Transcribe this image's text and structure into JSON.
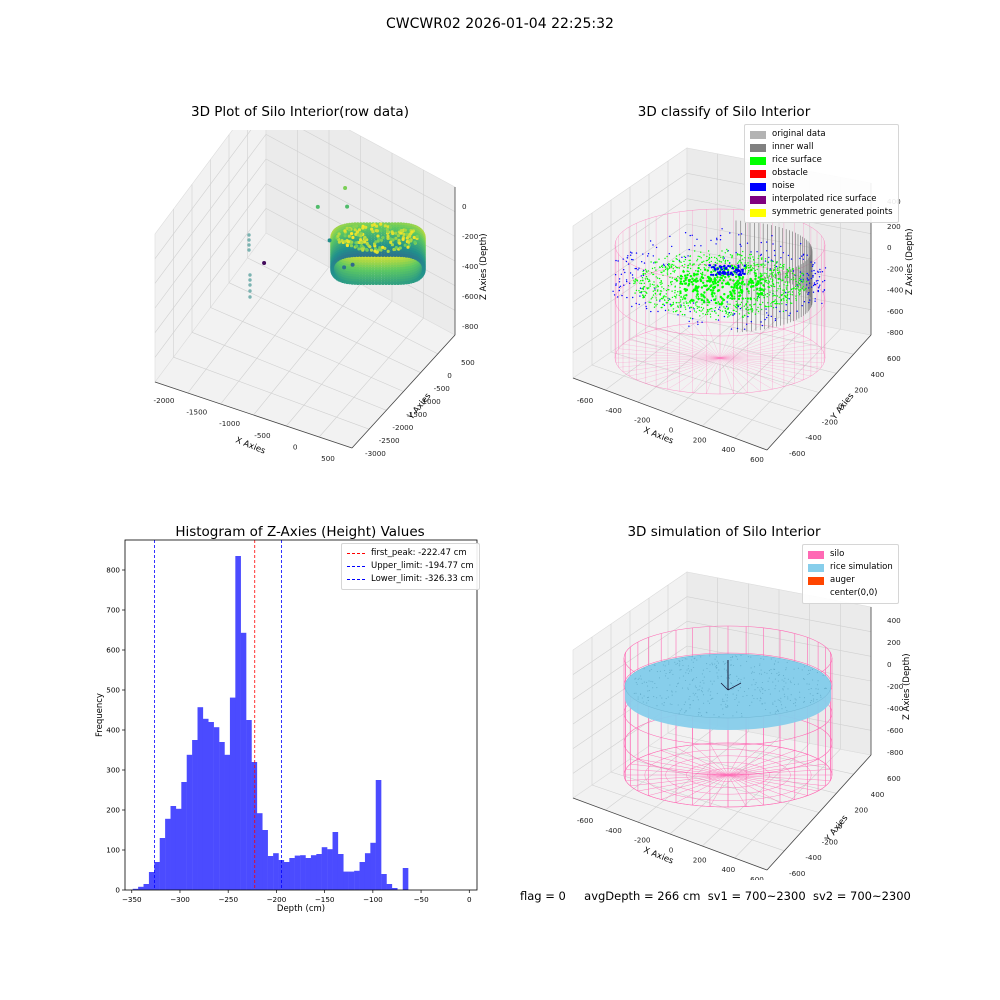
{
  "suptitle": "CWCWR02 2026-01-04 22:25:32",
  "footer": {
    "flag": "flag = 0",
    "avg_depth": "avgDepth = 266 cm",
    "sv1": "sv1 = 700~2300",
    "sv2": "sv2 = 700~2300"
  },
  "colors": {
    "silo_wire": "#ff69b4",
    "rice": "#87ceeb",
    "rice_surface": "#00ff00",
    "noise": "#0000ff",
    "inner_wall": "#808080",
    "hist_bar": "#4b4bff"
  },
  "chart_data": [
    {
      "type": "scatter",
      "projection": "3d",
      "title": "3D Plot of Silo Interior(row data)",
      "xlabel": "X Axies",
      "ylabel": "Y Axies",
      "zlabel": "Z Axies (Depth)",
      "x_ticks": [
        "-2000",
        "-1500",
        "-1000",
        "-500",
        "0",
        "500"
      ],
      "y_ticks": [
        "500",
        "0",
        "-500",
        "-1000",
        "-1500",
        "-2000",
        "-2500",
        "-3000"
      ],
      "z_ticks": [
        "0",
        "-200",
        "-400",
        "-600",
        "-800"
      ],
      "colormap": "viridis",
      "outlier_points": [
        {
          "x": -1900,
          "y": 0,
          "z": -950
        },
        {
          "x": -1000,
          "y": -300,
          "z": -300
        },
        {
          "x": -850,
          "y": -250,
          "z": -500
        },
        {
          "x": -600,
          "y": -350,
          "z": -600
        },
        {
          "x": -600,
          "y": -50,
          "z": -650
        },
        {
          "x": -700,
          "y": 0,
          "z": -300
        },
        {
          "x": -750,
          "y": 50,
          "z": -200
        }
      ]
    },
    {
      "type": "scatter",
      "projection": "3d",
      "title": "3D classify of Silo Interior",
      "xlabel": "X Axies",
      "ylabel": "Y Axies",
      "zlabel": "Z Axies (Depth)",
      "x_ticks": [
        "-600",
        "-400",
        "-200",
        "0",
        "200",
        "400",
        "600"
      ],
      "y_ticks": [
        "600",
        "400",
        "200",
        "0",
        "-200",
        "-400",
        "-600"
      ],
      "z_ticks": [
        "200",
        "0",
        "-200",
        "-400",
        "-600",
        "-800"
      ],
      "z_ticks_top_partial": "400",
      "legend": [
        {
          "label": "original data",
          "color": "#b3b3b3"
        },
        {
          "label": "inner wall",
          "color": "#808080"
        },
        {
          "label": "rice surface",
          "color": "#00ff00"
        },
        {
          "label": "obstacle",
          "color": "#ff0000"
        },
        {
          "label": "noise",
          "color": "#0000ff"
        },
        {
          "label": "interpolated rice surface",
          "color": "#800080"
        },
        {
          "label": "symmetric generated points",
          "color": "#ffff00"
        }
      ],
      "legend_placement": "upper-right"
    },
    {
      "type": "bar",
      "title": "Histogram of Z-Axies (Height) Values",
      "xlabel": "Depth (cm)",
      "ylabel": "Frequency",
      "xlim": [
        -357,
        8
      ],
      "ylim": [
        0,
        875
      ],
      "x_ticks": [
        -350,
        -300,
        -250,
        -200,
        -150,
        -100,
        -50,
        0
      ],
      "y_ticks": [
        0,
        100,
        200,
        300,
        400,
        500,
        600,
        700,
        800
      ],
      "bin_start": -349,
      "bin_width": 5.6,
      "values": [
        3,
        8,
        15,
        45,
        70,
        130,
        178,
        210,
        203,
        270,
        338,
        375,
        457,
        428,
        420,
        407,
        370,
        338,
        481,
        835,
        643,
        425,
        320,
        192,
        150,
        85,
        92,
        75,
        70,
        80,
        86,
        87,
        80,
        87,
        90,
        107,
        102,
        145,
        90,
        46,
        46,
        48,
        70,
        92,
        118,
        275,
        40,
        15,
        5,
        0,
        55
      ],
      "lines": [
        {
          "label": "first_peak: -222.47 cm",
          "x": -222.47,
          "color": "#ff0000"
        },
        {
          "label": "Upper_limit: -194.77 cm",
          "x": -194.77,
          "color": "#0000ff"
        },
        {
          "label": "Lower_limit: -326.33 cm",
          "x": -326.33,
          "color": "#0000ff"
        }
      ],
      "legend_placement": "upper-right"
    },
    {
      "type": "surface",
      "projection": "3d",
      "title": "3D simulation of Silo Interior",
      "xlabel": "X Axies",
      "ylabel": "Y Axies",
      "zlabel": "Z Axies (Depth)",
      "x_ticks": [
        "-600",
        "-400",
        "-200",
        "0",
        "200",
        "400",
        "600"
      ],
      "y_ticks": [
        "600",
        "400",
        "200",
        "0",
        "-200",
        "-400",
        "-600"
      ],
      "z_ticks": [
        "400",
        "200",
        "0",
        "-200",
        "-400",
        "-600",
        "-800"
      ],
      "legend": [
        {
          "label": "silo",
          "color": "#ff69b4"
        },
        {
          "label": "rice simulation",
          "color": "#87ceeb"
        },
        {
          "label": "auger",
          "color": "#ff4500"
        },
        {
          "label": "center(0,0)",
          "color": ""
        }
      ],
      "legend_placement": "upper-right"
    }
  ]
}
